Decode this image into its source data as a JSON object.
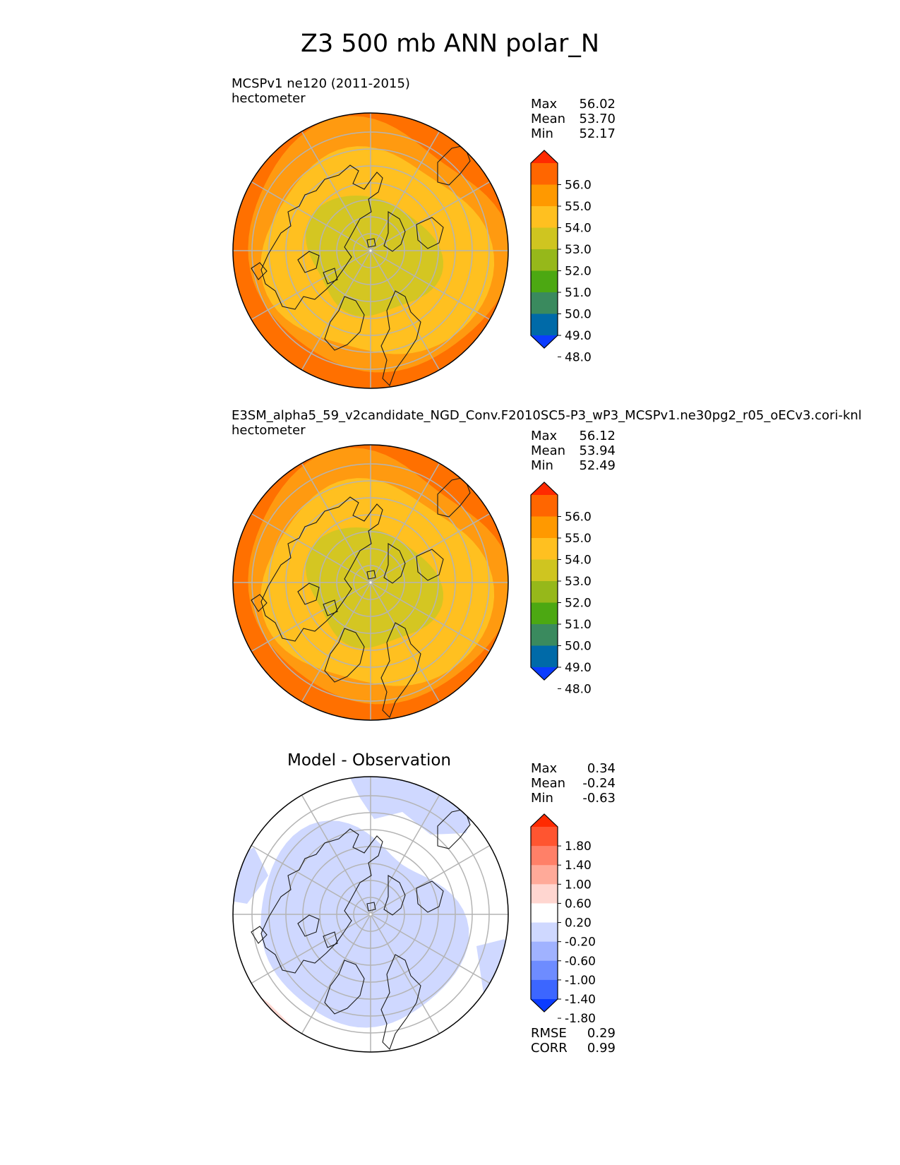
{
  "title": "Z3 500 mb ANN polar_N",
  "panels": [
    {
      "subtitle": "MCSPv1 ne120 (2011-2015)",
      "units": "hectometer",
      "stats": [
        {
          "label": "Max",
          "value": "56.02"
        },
        {
          "label": "Mean",
          "value": "53.70"
        },
        {
          "label": "Min",
          "value": "52.17"
        }
      ]
    },
    {
      "subtitle": "E3SM_alpha5_59_v2candidate_NGD_Conv.F2010SC5-P3_wP3_MCSPv1.ne30pg2_r05_oECv3.cori-knl",
      "units": "hectometer",
      "stats": [
        {
          "label": "Max",
          "value": "56.12"
        },
        {
          "label": "Mean",
          "value": "53.94"
        },
        {
          "label": "Min",
          "value": "52.49"
        }
      ]
    },
    {
      "center_title": "Model - Observation",
      "stats": [
        {
          "label": "Max",
          "value": "0.34"
        },
        {
          "label": "Mean",
          "value": "-0.24"
        },
        {
          "label": "Min",
          "value": "-0.63"
        }
      ],
      "metrics": [
        {
          "label": "RMSE",
          "value": "0.29"
        },
        {
          "label": "CORR",
          "value": "0.99"
        }
      ]
    }
  ],
  "chart_data": [
    {
      "type": "heatmap",
      "projection": "north-polar-stereographic",
      "title": "MCSPv1 ne120 (2011-2015)",
      "units": "hectometer",
      "colorbar": {
        "ticks": [
          "56.0",
          "55.0",
          "54.0",
          "53.0",
          "52.0",
          "51.0",
          "50.0",
          "49.0",
          "48.0"
        ],
        "colors": [
          "#ff2a00",
          "#ff6600",
          "#ff9900",
          "#ffc020",
          "#cfc520",
          "#96b81a",
          "#4ca812",
          "#3a8a5e",
          "#006aa8",
          "#0b3cff"
        ]
      },
      "field_levels": [
        {
          "name": "outer",
          "color": "#ff7000"
        },
        {
          "name": "ring2",
          "color": "#ff9a10"
        },
        {
          "name": "ring3",
          "color": "#ffc020"
        },
        {
          "name": "core",
          "color": "#d4c622"
        }
      ],
      "stats": {
        "max": 56.02,
        "mean": 53.7,
        "min": 52.17
      }
    },
    {
      "type": "heatmap",
      "projection": "north-polar-stereographic",
      "title": "E3SM_alpha5_59_v2candidate_NGD_Conv.F2010SC5-P3_wP3_MCSPv1.ne30pg2_r05_oECv3.cori-knl",
      "units": "hectometer",
      "colorbar": {
        "ticks": [
          "56.0",
          "55.0",
          "54.0",
          "53.0",
          "52.0",
          "51.0",
          "50.0",
          "49.0",
          "48.0"
        ],
        "colors": [
          "#ff2a00",
          "#ff6600",
          "#ff9900",
          "#ffc020",
          "#cfc520",
          "#96b81a",
          "#4ca812",
          "#3a8a5e",
          "#006aa8",
          "#0b3cff"
        ]
      },
      "field_levels": [
        {
          "name": "outer",
          "color": "#ff7000"
        },
        {
          "name": "ring2",
          "color": "#ff9a10"
        },
        {
          "name": "ring3",
          "color": "#ffc020"
        },
        {
          "name": "core",
          "color": "#d4c622"
        }
      ],
      "stats": {
        "max": 56.12,
        "mean": 53.94,
        "min": 52.49
      }
    },
    {
      "type": "heatmap",
      "projection": "north-polar-stereographic",
      "title": "Model - Observation",
      "colorbar": {
        "ticks": [
          "1.80",
          "1.40",
          "1.00",
          "0.60",
          "0.20",
          "-0.20",
          "-0.60",
          "-1.00",
          "-1.40",
          "-1.80"
        ],
        "colors": [
          "#ff2a00",
          "#ff5530",
          "#ff8068",
          "#ffaa99",
          "#ffd6d0",
          "#ffffff",
          "#cfd8ff",
          "#a0b2ff",
          "#6e8cff",
          "#3c66ff",
          "#0b3cff"
        ]
      },
      "field_levels": [
        {
          "name": "background",
          "color": "#ffffff"
        },
        {
          "name": "negative",
          "color": "#cfd8ff"
        },
        {
          "name": "positive",
          "color": "#ffd6d0"
        }
      ],
      "stats": {
        "max": 0.34,
        "mean": -0.24,
        "min": -0.63,
        "rmse": 0.29,
        "corr": 0.99
      }
    }
  ]
}
